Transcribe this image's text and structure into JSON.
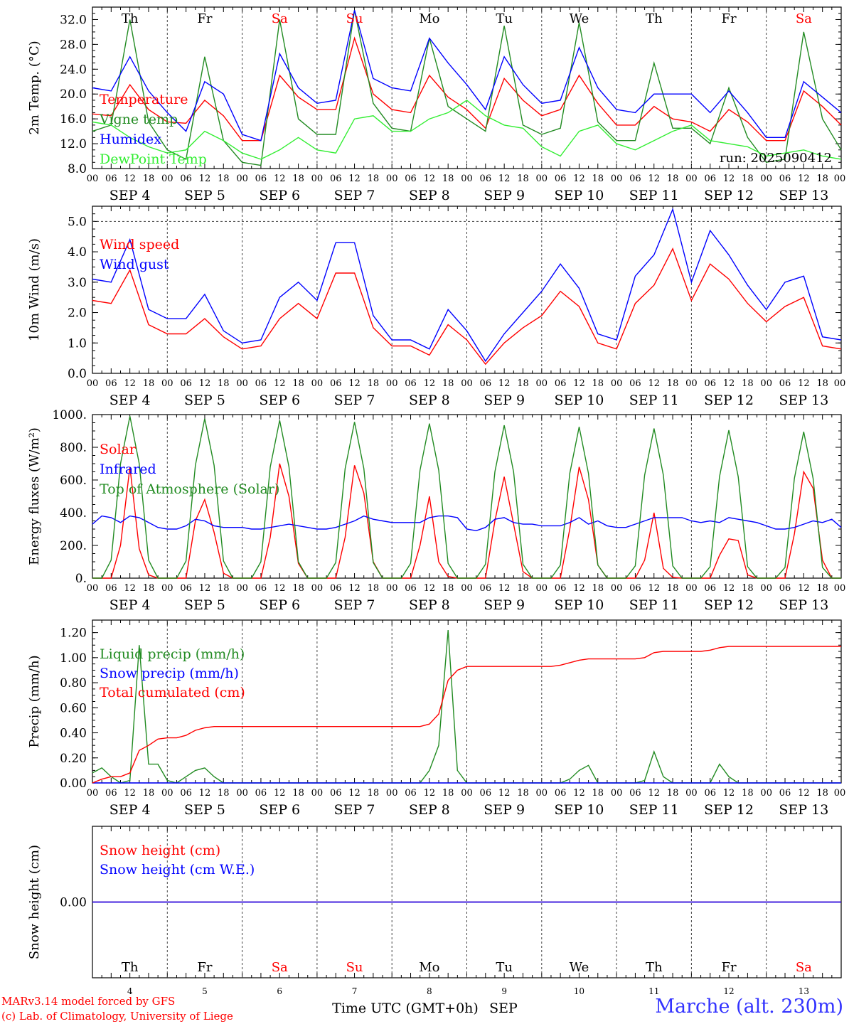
{
  "credits": {
    "line1": "MARv3.14 model forced by GFS",
    "line2": "(c) Lab. of Climatology, University of Liege"
  },
  "station": "Marche (alt. 230m)",
  "run_label": "run: 2025090412",
  "xaxis_title": "Time UTC (GMT+0h)",
  "month_label": "SEP",
  "hour_ticks": [
    "00",
    "06",
    "12",
    "18"
  ],
  "day_labels": [
    "SEP 4",
    "SEP 5",
    "SEP 6",
    "SEP 7",
    "SEP 8",
    "SEP 9",
    "SEP 10",
    "SEP 11",
    "SEP 12",
    "SEP 13"
  ],
  "day_numbers": [
    "4",
    "5",
    "6",
    "7",
    "8",
    "9",
    "10",
    "11",
    "12",
    "13"
  ],
  "weekdays": [
    {
      "label": "Th",
      "color": "#000000"
    },
    {
      "label": "Fr",
      "color": "#000000"
    },
    {
      "label": "Sa",
      "color": "#ff0000"
    },
    {
      "label": "Su",
      "color": "#ff0000"
    },
    {
      "label": "Mo",
      "color": "#000000"
    },
    {
      "label": "Tu",
      "color": "#000000"
    },
    {
      "label": "We",
      "color": "#000000"
    },
    {
      "label": "Th",
      "color": "#000000"
    },
    {
      "label": "Fr",
      "color": "#000000"
    },
    {
      "label": "Sa",
      "color": "#ff0000"
    }
  ],
  "chart_data": [
    {
      "type": "line",
      "ylabel": "2m Temp. (°C)",
      "ylim": [
        8,
        34
      ],
      "yticks": [
        "8.0",
        "12.0",
        "16.0",
        "20.0",
        "24.0",
        "28.0",
        "32.0"
      ],
      "x_hours": [
        0,
        6,
        12,
        18,
        24,
        30,
        36,
        42,
        48,
        54,
        60,
        66,
        72,
        78,
        84,
        90,
        96,
        102,
        108,
        114,
        120,
        126,
        132,
        138,
        144,
        150,
        156,
        162,
        168,
        174,
        180,
        186,
        192,
        198,
        204,
        210,
        216,
        222,
        228,
        234,
        240
      ],
      "series": [
        {
          "name": "Temperature",
          "color": "#ff0000",
          "values": [
            16.8,
            16.5,
            21.5,
            17.5,
            15.5,
            15.3,
            19.0,
            16.5,
            12.5,
            12.5,
            23.0,
            19.5,
            17.5,
            17.5,
            29.0,
            20.0,
            17.5,
            17.0,
            23.0,
            19.5,
            17.5,
            14.5,
            22.5,
            19.0,
            16.5,
            17.5,
            23.0,
            18.5,
            15.0,
            15.0,
            18.0,
            16.0,
            15.5,
            14.0,
            17.5,
            15.5,
            12.5,
            12.5,
            20.5,
            18.0,
            15.0
          ]
        },
        {
          "name": "Vigne temp",
          "color": "#228b22",
          "values": [
            14.0,
            15.0,
            32.0,
            15.5,
            11.0,
            9.5,
            26.0,
            12.5,
            9.0,
            8.5,
            32.0,
            16.0,
            13.5,
            13.5,
            33.5,
            18.5,
            14.5,
            14.0,
            29.0,
            18.0,
            16.0,
            14.0,
            31.0,
            15.0,
            13.5,
            14.5,
            31.5,
            15.5,
            12.5,
            12.5,
            25.0,
            14.5,
            14.5,
            12.0,
            21.0,
            13.0,
            9.0,
            9.5,
            30.0,
            16.0,
            11.0
          ]
        },
        {
          "name": "Humidex",
          "color": "#0000ff",
          "values": [
            21.0,
            20.5,
            26.0,
            20.5,
            17.0,
            14.0,
            22.0,
            20.0,
            13.5,
            12.5,
            26.5,
            21.0,
            18.5,
            19.0,
            33.5,
            22.5,
            21.0,
            20.5,
            29.0,
            25.0,
            21.5,
            17.5,
            26.0,
            21.5,
            18.5,
            19.0,
            27.5,
            21.0,
            17.5,
            17.0,
            20.0,
            20.0,
            20.0,
            17.0,
            20.5,
            17.0,
            13.0,
            13.0,
            22.0,
            19.5,
            17.0
          ]
        },
        {
          "name": "DewPoint Temp",
          "color": "#33ee33",
          "values": [
            15.5,
            15.0,
            13.0,
            11.5,
            10.5,
            11.0,
            14.0,
            12.5,
            10.5,
            9.5,
            11.0,
            13.0,
            11.0,
            10.5,
            16.0,
            16.5,
            14.0,
            14.0,
            16.0,
            17.0,
            19.0,
            16.5,
            15.0,
            14.5,
            11.5,
            10.0,
            14.0,
            15.0,
            12.0,
            11.0,
            12.5,
            14.0,
            15.0,
            12.5,
            12.0,
            11.5,
            10.0,
            10.5,
            11.0,
            10.0,
            9.5
          ]
        }
      ]
    },
    {
      "type": "line",
      "ylabel": "10m Wind (m/s)",
      "ylim": [
        0,
        5.5
      ],
      "yticks": [
        "0.0",
        "1.0",
        "2.0",
        "3.0",
        "4.0",
        "5.0"
      ],
      "reference_line": 5.0,
      "x_hours": [
        0,
        6,
        12,
        18,
        24,
        30,
        36,
        42,
        48,
        54,
        60,
        66,
        72,
        78,
        84,
        90,
        96,
        102,
        108,
        114,
        120,
        126,
        132,
        138,
        144,
        150,
        156,
        162,
        168,
        174,
        180,
        186,
        192,
        198,
        204,
        210,
        216,
        222,
        228,
        234,
        240
      ],
      "series": [
        {
          "name": "Wind speed",
          "color": "#ff0000",
          "values": [
            2.4,
            2.3,
            3.4,
            1.6,
            1.3,
            1.3,
            1.8,
            1.2,
            0.8,
            0.9,
            1.8,
            2.3,
            1.8,
            3.3,
            3.3,
            1.5,
            0.9,
            0.9,
            0.6,
            1.6,
            1.1,
            0.3,
            1.0,
            1.5,
            1.9,
            2.7,
            2.2,
            1.0,
            0.8,
            2.3,
            2.9,
            4.1,
            2.4,
            3.6,
            3.1,
            2.3,
            1.7,
            2.2,
            2.5,
            0.9,
            0.8
          ]
        },
        {
          "name": "Wind gust",
          "color": "#0000ff",
          "values": [
            3.1,
            3.0,
            4.4,
            2.1,
            1.8,
            1.8,
            2.6,
            1.4,
            1.0,
            1.1,
            2.5,
            3.0,
            2.4,
            4.3,
            4.3,
            1.9,
            1.1,
            1.1,
            0.8,
            2.1,
            1.4,
            0.4,
            1.3,
            2.0,
            2.7,
            3.6,
            2.8,
            1.3,
            1.1,
            3.2,
            3.9,
            5.4,
            3.0,
            4.7,
            3.9,
            2.9,
            2.1,
            3.0,
            3.2,
            1.2,
            1.1
          ]
        }
      ]
    },
    {
      "type": "line",
      "ylabel": "Energy fluxes (W/m²)",
      "ylim": [
        0,
        1000
      ],
      "yticks": [
        "0.",
        "200.",
        "400.",
        "600.",
        "800.",
        "1000."
      ],
      "x_hours": [
        0,
        3,
        6,
        9,
        12,
        15,
        18,
        21,
        24,
        27,
        30,
        33,
        36,
        39,
        42,
        45,
        48,
        51,
        54,
        57,
        60,
        63,
        66,
        69,
        72,
        75,
        78,
        81,
        84,
        87,
        90,
        93,
        96,
        99,
        102,
        105,
        108,
        111,
        114,
        117,
        120,
        123,
        126,
        129,
        132,
        135,
        138,
        141,
        144,
        147,
        150,
        153,
        156,
        159,
        162,
        165,
        168,
        171,
        174,
        177,
        180,
        183,
        186,
        189,
        192,
        195,
        198,
        201,
        204,
        207,
        210,
        213,
        216,
        219,
        222,
        225,
        228,
        231,
        234,
        237,
        240
      ],
      "series": [
        {
          "name": "Solar",
          "color": "#ff0000",
          "values": [
            0,
            0,
            0,
            200,
            680,
            180,
            20,
            0,
            0,
            0,
            0,
            350,
            480,
            280,
            30,
            0,
            0,
            0,
            0,
            250,
            700,
            500,
            90,
            0,
            0,
            0,
            0,
            250,
            690,
            520,
            100,
            0,
            0,
            0,
            0,
            200,
            500,
            100,
            10,
            0,
            0,
            0,
            0,
            350,
            620,
            330,
            40,
            0,
            0,
            0,
            0,
            300,
            680,
            480,
            80,
            0,
            0,
            0,
            0,
            110,
            400,
            60,
            5,
            0,
            0,
            0,
            0,
            140,
            240,
            230,
            20,
            0,
            0,
            0,
            0,
            270,
            650,
            550,
            110,
            0,
            0
          ]
        },
        {
          "name": "Infrared",
          "color": "#0000ff",
          "values": [
            330,
            380,
            370,
            340,
            380,
            370,
            340,
            310,
            300,
            300,
            320,
            360,
            350,
            320,
            310,
            310,
            310,
            300,
            300,
            310,
            320,
            330,
            320,
            310,
            300,
            300,
            310,
            330,
            350,
            380,
            360,
            350,
            340,
            340,
            340,
            340,
            370,
            380,
            380,
            370,
            300,
            290,
            310,
            360,
            370,
            340,
            330,
            330,
            320,
            320,
            320,
            340,
            370,
            330,
            350,
            320,
            310,
            310,
            330,
            350,
            370,
            370,
            370,
            370,
            350,
            340,
            350,
            340,
            370,
            360,
            350,
            340,
            320,
            300,
            300,
            310,
            330,
            350,
            340,
            360,
            310
          ]
        },
        {
          "name": "Top of Atmosphere (Solar)",
          "color": "#228b22",
          "values": [
            0,
            0,
            110,
            700,
            990,
            700,
            110,
            0,
            0,
            0,
            105,
            690,
            975,
            690,
            105,
            0,
            0,
            0,
            100,
            680,
            965,
            680,
            100,
            0,
            0,
            0,
            95,
            670,
            955,
            670,
            95,
            0,
            0,
            0,
            90,
            660,
            945,
            660,
            90,
            0,
            0,
            0,
            85,
            650,
            935,
            650,
            85,
            0,
            0,
            0,
            80,
            640,
            925,
            640,
            80,
            0,
            0,
            0,
            75,
            630,
            915,
            630,
            75,
            0,
            0,
            0,
            70,
            620,
            905,
            620,
            70,
            0,
            0,
            0,
            65,
            610,
            895,
            610,
            65,
            0,
            0
          ]
        }
      ]
    },
    {
      "type": "line",
      "ylabel": "Precip (mm/h)",
      "ylim": [
        0,
        1.3
      ],
      "yticks": [
        "0.00",
        "0.20",
        "0.40",
        "0.60",
        "0.80",
        "1.00",
        "1.20"
      ],
      "x_hours": [
        0,
        3,
        6,
        9,
        12,
        15,
        18,
        21,
        24,
        27,
        30,
        33,
        36,
        39,
        42,
        45,
        48,
        51,
        54,
        57,
        60,
        63,
        66,
        69,
        72,
        75,
        78,
        81,
        84,
        87,
        90,
        93,
        96,
        99,
        102,
        105,
        108,
        111,
        114,
        117,
        120,
        123,
        126,
        129,
        132,
        135,
        138,
        141,
        144,
        147,
        150,
        153,
        156,
        159,
        162,
        165,
        168,
        171,
        174,
        177,
        180,
        183,
        186,
        189,
        192,
        195,
        198,
        201,
        204,
        207,
        210,
        213,
        216,
        219,
        222,
        225,
        228,
        231,
        234,
        237,
        240
      ],
      "series": [
        {
          "name": "Liquid precip (mm/h)",
          "color": "#228b22",
          "values": [
            0.08,
            0.12,
            0.05,
            0.0,
            0.02,
            1.1,
            0.15,
            0.15,
            0.02,
            0.0,
            0.05,
            0.1,
            0.12,
            0.05,
            0.0,
            0.0,
            0.0,
            0.0,
            0.0,
            0.0,
            0.0,
            0.0,
            0.0,
            0.0,
            0.0,
            0.0,
            0.0,
            0.0,
            0.0,
            0.0,
            0.0,
            0.0,
            0.0,
            0.0,
            0.0,
            0.0,
            0.1,
            0.3,
            1.22,
            0.1,
            0.0,
            0.0,
            0.0,
            0.0,
            0.0,
            0.0,
            0.0,
            0.0,
            0.0,
            0.0,
            0.0,
            0.03,
            0.1,
            0.14,
            0.0,
            0.0,
            0.0,
            0.0,
            0.0,
            0.02,
            0.25,
            0.05,
            0.0,
            0.0,
            0.0,
            0.0,
            0.0,
            0.15,
            0.05,
            0.0,
            0.0,
            0.0,
            0.0,
            0.0,
            0.0,
            0.0,
            0.0,
            0.0,
            0.0,
            0.0,
            0.0
          ]
        },
        {
          "name": "Snow precip (mm/h)",
          "color": "#0000ff",
          "values": [
            0,
            0,
            0,
            0,
            0,
            0,
            0,
            0,
            0,
            0,
            0,
            0,
            0,
            0,
            0,
            0,
            0,
            0,
            0,
            0,
            0,
            0,
            0,
            0,
            0,
            0,
            0,
            0,
            0,
            0,
            0,
            0,
            0,
            0,
            0,
            0,
            0,
            0,
            0,
            0,
            0,
            0,
            0,
            0,
            0,
            0,
            0,
            0,
            0,
            0,
            0,
            0,
            0,
            0,
            0,
            0,
            0,
            0,
            0,
            0,
            0,
            0,
            0,
            0,
            0,
            0,
            0,
            0,
            0,
            0,
            0,
            0,
            0,
            0,
            0,
            0,
            0,
            0,
            0,
            0,
            0
          ]
        },
        {
          "name": "Total cumulated (cm)",
          "color": "#ff0000",
          "values": [
            0.0,
            0.03,
            0.05,
            0.05,
            0.08,
            0.26,
            0.3,
            0.35,
            0.36,
            0.36,
            0.38,
            0.42,
            0.44,
            0.45,
            0.45,
            0.45,
            0.45,
            0.45,
            0.45,
            0.45,
            0.45,
            0.45,
            0.45,
            0.45,
            0.45,
            0.45,
            0.45,
            0.45,
            0.45,
            0.45,
            0.45,
            0.45,
            0.45,
            0.45,
            0.45,
            0.45,
            0.47,
            0.55,
            0.82,
            0.9,
            0.93,
            0.93,
            0.93,
            0.93,
            0.93,
            0.93,
            0.93,
            0.93,
            0.93,
            0.93,
            0.94,
            0.96,
            0.98,
            0.99,
            0.99,
            0.99,
            0.99,
            0.99,
            0.99,
            1.0,
            1.04,
            1.05,
            1.05,
            1.05,
            1.05,
            1.05,
            1.06,
            1.08,
            1.09,
            1.09,
            1.09,
            1.09,
            1.09,
            1.09,
            1.09,
            1.09,
            1.09,
            1.09,
            1.09,
            1.09,
            1.09
          ]
        }
      ]
    },
    {
      "type": "line",
      "ylabel": "Snow height (cm)",
      "ylim": [
        -1,
        1
      ],
      "yticks": [
        "0.00"
      ],
      "x_hours": [
        0,
        240
      ],
      "series": [
        {
          "name": "Snow height (cm)",
          "color": "#ff0000",
          "values": [
            0.0,
            0.0
          ]
        },
        {
          "name": "Snow height (cm W.E.)",
          "color": "#0000ff",
          "values": [
            0.0,
            0.0
          ]
        }
      ]
    }
  ]
}
